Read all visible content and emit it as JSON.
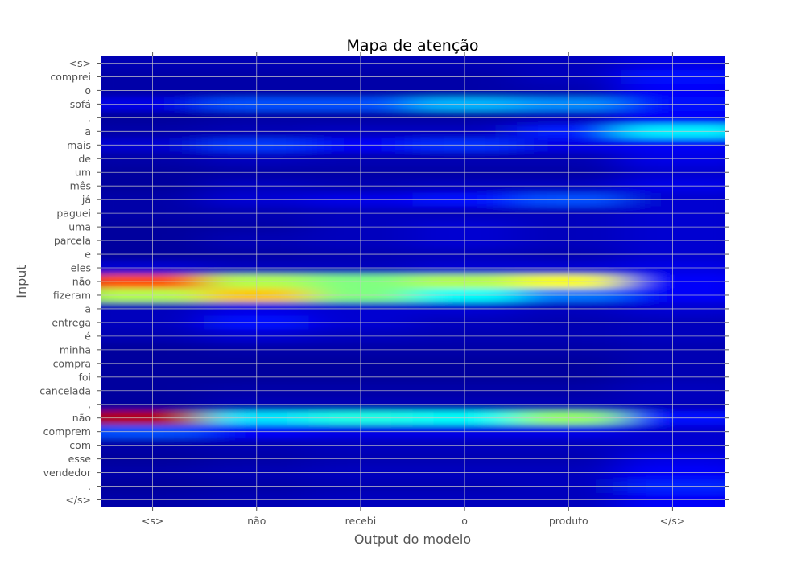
{
  "chart_data": {
    "type": "heatmap",
    "title": "Mapa de atenção",
    "xlabel": "Output do modelo",
    "ylabel": "Input",
    "x_categories": [
      "<s>",
      "não",
      "recebi",
      "o",
      "produto",
      "</s>"
    ],
    "y_categories": [
      "<s>",
      "comprei",
      "o",
      "sofá",
      ",",
      "a",
      "mais",
      "de",
      "um",
      "mês",
      "já",
      "paguei",
      "uma",
      "parcela",
      "e",
      "eles",
      "não",
      "fizeram",
      "a",
      "entrega",
      "é",
      "minha",
      "compra",
      "foi",
      "cancelada",
      ",",
      "não",
      "comprem",
      "com",
      "esse",
      "vendedor",
      ".",
      "</s>"
    ],
    "values": [
      [
        0.05,
        0.05,
        0.05,
        0.05,
        0.06,
        0.1
      ],
      [
        0.04,
        0.04,
        0.04,
        0.04,
        0.06,
        0.14
      ],
      [
        0.04,
        0.04,
        0.04,
        0.04,
        0.05,
        0.12
      ],
      [
        0.1,
        0.2,
        0.2,
        0.3,
        0.26,
        0.14
      ],
      [
        0.03,
        0.04,
        0.04,
        0.04,
        0.06,
        0.12
      ],
      [
        0.04,
        0.05,
        0.06,
        0.06,
        0.15,
        0.36
      ],
      [
        0.08,
        0.18,
        0.12,
        0.17,
        0.1,
        0.12
      ],
      [
        0.04,
        0.06,
        0.05,
        0.05,
        0.05,
        0.1
      ],
      [
        0.03,
        0.04,
        0.04,
        0.04,
        0.04,
        0.08
      ],
      [
        0.03,
        0.06,
        0.05,
        0.06,
        0.06,
        0.1
      ],
      [
        0.04,
        0.08,
        0.1,
        0.14,
        0.2,
        0.08
      ],
      [
        0.04,
        0.05,
        0.06,
        0.06,
        0.06,
        0.08
      ],
      [
        0.03,
        0.04,
        0.06,
        0.08,
        0.06,
        0.08
      ],
      [
        0.03,
        0.05,
        0.06,
        0.08,
        0.06,
        0.08
      ],
      [
        0.03,
        0.04,
        0.05,
        0.06,
        0.05,
        0.08
      ],
      [
        0.08,
        0.06,
        0.06,
        0.08,
        0.08,
        0.1
      ],
      [
        0.8,
        0.55,
        0.5,
        0.55,
        0.62,
        0.12
      ],
      [
        0.55,
        0.68,
        0.5,
        0.38,
        0.24,
        0.12
      ],
      [
        0.06,
        0.1,
        0.08,
        0.08,
        0.06,
        0.08
      ],
      [
        0.06,
        0.14,
        0.08,
        0.06,
        0.05,
        0.06
      ],
      [
        0.05,
        0.08,
        0.06,
        0.05,
        0.05,
        0.06
      ],
      [
        0.03,
        0.04,
        0.04,
        0.04,
        0.04,
        0.05
      ],
      [
        0.03,
        0.03,
        0.03,
        0.03,
        0.03,
        0.05
      ],
      [
        0.03,
        0.03,
        0.03,
        0.03,
        0.03,
        0.05
      ],
      [
        0.03,
        0.04,
        0.04,
        0.04,
        0.04,
        0.06
      ],
      [
        0.03,
        0.05,
        0.05,
        0.05,
        0.05,
        0.06
      ],
      [
        0.95,
        0.35,
        0.4,
        0.38,
        0.52,
        0.14
      ],
      [
        0.2,
        0.12,
        0.1,
        0.1,
        0.1,
        0.08
      ],
      [
        0.04,
        0.05,
        0.06,
        0.06,
        0.06,
        0.08
      ],
      [
        0.03,
        0.04,
        0.05,
        0.05,
        0.05,
        0.1
      ],
      [
        0.04,
        0.05,
        0.06,
        0.06,
        0.06,
        0.12
      ],
      [
        0.03,
        0.04,
        0.05,
        0.05,
        0.06,
        0.16
      ],
      [
        0.04,
        0.05,
        0.06,
        0.06,
        0.06,
        0.12
      ]
    ],
    "colormap": "jet",
    "grid": true
  }
}
